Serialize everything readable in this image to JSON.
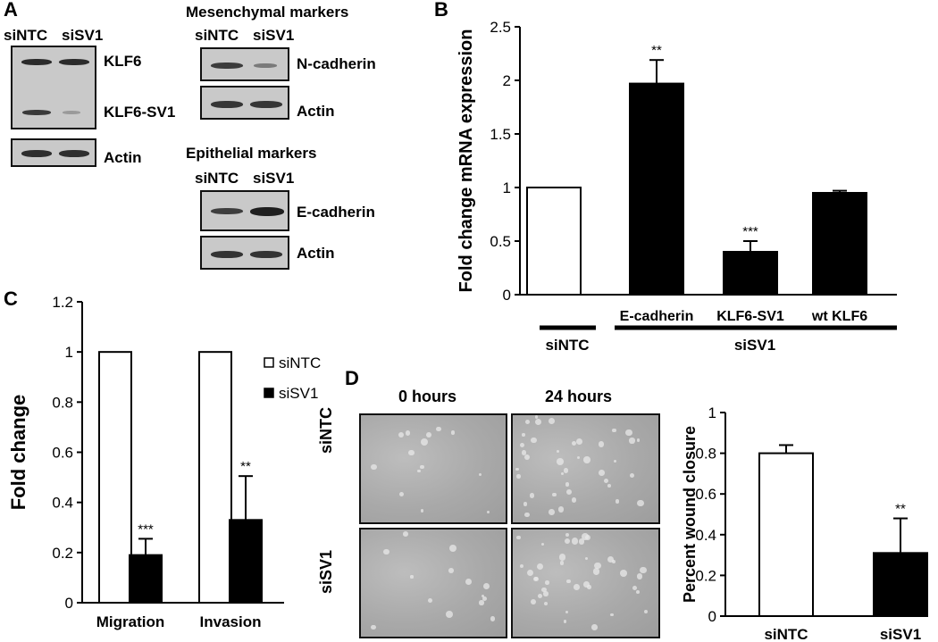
{
  "panels": {
    "A": {
      "letter": "A",
      "left_header": [
        "siNTC",
        "siSV1"
      ],
      "mes_title": "Mesenchymal  markers",
      "mes_header": [
        "siNTC",
        "siSV1"
      ],
      "epi_title": "Epithelial markers",
      "epi_header": [
        "siNTC",
        "siSV1"
      ],
      "labels": {
        "klf6": "KLF6",
        "klf6sv1": "KLF6-SV1",
        "actin1": "Actin",
        "ncad": "N-cadherin",
        "actin2": "Actin",
        "ecad": "E-cadherin",
        "actin3": "Actin"
      }
    },
    "B": {
      "letter": "B"
    },
    "C": {
      "letter": "C"
    },
    "D": {
      "letter": "D",
      "col_labels": [
        "0 hours",
        "24 hours"
      ],
      "row_labels": [
        "siNTC",
        "siSV1"
      ]
    }
  },
  "colors": {
    "bar_black": "#000000",
    "bar_white": "#ffffff",
    "axis": "#000000"
  },
  "chart_data": [
    {
      "id": "B",
      "type": "bar",
      "categories": [
        "",
        "E-cadherin",
        "KLF6-SV1",
        "wt KLF6"
      ],
      "series": [
        {
          "values": [
            1.0,
            1.97,
            0.4,
            0.95
          ],
          "errors": [
            0,
            0.22,
            0.1,
            0.02
          ],
          "fills": [
            "white",
            "black",
            "black",
            "black"
          ]
        }
      ],
      "significance": [
        "",
        "**",
        "***",
        ""
      ],
      "ylabel": "Fold change mRNA expression",
      "ylim": [
        0,
        2.5
      ],
      "yticks": [
        "0",
        "0.5",
        "1",
        "1.5",
        "2",
        "2.5"
      ],
      "group_labels": [
        {
          "label": "siNTC",
          "covers": [
            0
          ]
        },
        {
          "label": "siSV1",
          "covers": [
            1,
            2,
            3
          ]
        }
      ],
      "grid": false
    },
    {
      "id": "C",
      "type": "bar",
      "categories": [
        "Migration",
        "Invasion"
      ],
      "series": [
        {
          "name": "siNTC",
          "values": [
            1.0,
            1.0
          ],
          "errors": [
            0,
            0
          ],
          "fill": "white"
        },
        {
          "name": "siSV1",
          "values": [
            0.19,
            0.33
          ],
          "errors": [
            0.065,
            0.175
          ],
          "fill": "black"
        }
      ],
      "significance": [
        "***",
        "**"
      ],
      "ylabel": "Fold change",
      "ylim": [
        0,
        1.2
      ],
      "yticks": [
        "0",
        "0.2",
        "0.4",
        "0.6",
        "0.8",
        "1",
        "1.2"
      ],
      "legend": "right",
      "grid": false
    },
    {
      "id": "D",
      "type": "bar",
      "categories": [
        "siNTC",
        "siSV1"
      ],
      "series": [
        {
          "values": [
            0.8,
            0.31
          ],
          "errors": [
            0.04,
            0.17
          ],
          "fills": [
            "white",
            "black"
          ]
        }
      ],
      "significance": [
        "",
        "**"
      ],
      "ylabel": "Percent wound closure",
      "ylim": [
        0,
        1
      ],
      "yticks": [
        "0",
        "0.2",
        "0.4",
        "0.6",
        "0.8",
        "1"
      ],
      "grid": false
    }
  ]
}
